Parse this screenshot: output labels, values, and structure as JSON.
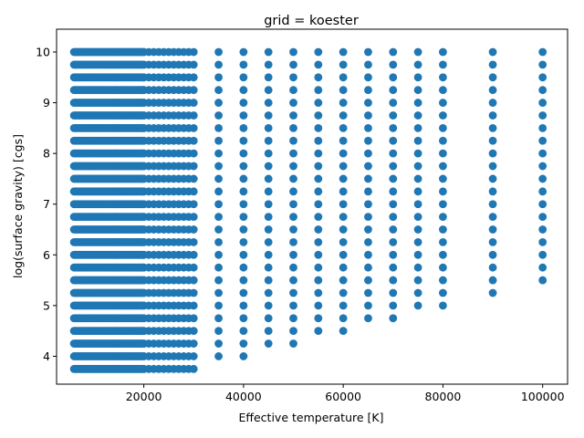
{
  "chart_data": {
    "type": "scatter",
    "title": "grid = koester",
    "xlabel": "Effective temperature [K]",
    "ylabel": "log(surface gravity) [cgs]",
    "xlim": [
      2500,
      105000
    ],
    "ylim": [
      3.45,
      10.45
    ],
    "x_ticks": [
      20000,
      40000,
      60000,
      80000,
      100000
    ],
    "x_tick_labels": [
      "20000",
      "40000",
      "60000",
      "80000",
      "100000"
    ],
    "y_ticks": [
      4,
      5,
      6,
      7,
      8,
      9,
      10
    ],
    "y_tick_labels": [
      "4",
      "5",
      "6",
      "7",
      "8",
      "9",
      "10"
    ],
    "grid": false,
    "legend": "none",
    "marker_color": "#1f77b4",
    "logg_step": 0.25,
    "logg_max": 10.0,
    "columns": [
      {
        "teff_range": [
          6000,
          20000
        ],
        "teff_step": 250,
        "logg_min": 3.75
      },
      {
        "teff_range": [
          20000,
          30000
        ],
        "teff_step": 1000,
        "logg_min": 3.75
      },
      {
        "teff": 35000,
        "logg_min": 4.0
      },
      {
        "teff": 40000,
        "logg_min": 4.0
      },
      {
        "teff": 45000,
        "logg_min": 4.25
      },
      {
        "teff": 50000,
        "logg_min": 4.25
      },
      {
        "teff": 55000,
        "logg_min": 4.5
      },
      {
        "teff": 60000,
        "logg_min": 4.5
      },
      {
        "teff": 65000,
        "logg_min": 4.75
      },
      {
        "teff": 70000,
        "logg_min": 4.75
      },
      {
        "teff": 75000,
        "logg_min": 5.0
      },
      {
        "teff": 80000,
        "logg_min": 5.0
      },
      {
        "teff": 90000,
        "logg_min": 5.25
      },
      {
        "teff": 100000,
        "logg_min": 5.5
      }
    ]
  }
}
